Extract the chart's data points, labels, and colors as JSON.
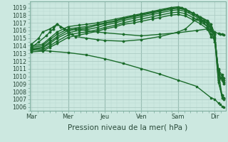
{
  "xlabel": "Pression niveau de la mer( hPa )",
  "background_color": "#cce8e0",
  "grid_color_major": "#a8c8c0",
  "grid_color_minor": "#b8d8d0",
  "line_color": "#1a6b2a",
  "yticks": [
    1006,
    1007,
    1008,
    1009,
    1010,
    1011,
    1012,
    1013,
    1014,
    1015,
    1016,
    1017,
    1018,
    1019
  ],
  "ylim": [
    1005.5,
    1019.8
  ],
  "xtick_labels": [
    "Mar",
    "Mer",
    "Jeu",
    "Ven",
    "Sam",
    "Dir"
  ],
  "xtick_positions": [
    0,
    1,
    2,
    3,
    4,
    5
  ],
  "xlim": [
    -0.05,
    5.3
  ],
  "lines": [
    {
      "x": [
        0.0,
        0.3,
        0.5,
        0.7,
        1.0,
        1.3,
        1.5,
        1.8,
        2.0,
        2.3,
        2.5,
        2.8,
        3.0,
        3.3,
        3.5,
        3.8,
        4.0,
        4.1,
        4.2,
        4.3,
        4.4,
        4.5,
        4.6,
        4.65,
        4.7,
        4.8,
        4.9,
        5.0,
        5.1,
        5.15,
        5.2,
        5.25
      ],
      "y": [
        1014.0,
        1014.2,
        1015.0,
        1015.8,
        1016.5,
        1016.7,
        1016.8,
        1017.0,
        1017.2,
        1017.5,
        1017.7,
        1018.0,
        1018.2,
        1018.5,
        1018.7,
        1019.0,
        1019.1,
        1019.0,
        1018.8,
        1018.5,
        1018.2,
        1018.0,
        1017.5,
        1017.3,
        1017.0,
        1016.5,
        1016.0,
        1015.8,
        1015.6,
        1015.5,
        1015.5,
        1015.4
      ],
      "marker": "D",
      "ms": 1.5,
      "lw": 1.0
    },
    {
      "x": [
        0.0,
        0.3,
        0.5,
        0.7,
        1.0,
        1.3,
        1.5,
        1.8,
        2.0,
        2.3,
        2.5,
        2.8,
        3.0,
        3.3,
        3.5,
        3.8,
        4.0,
        4.2,
        4.4,
        4.6,
        4.8,
        4.9,
        5.0,
        5.1,
        5.2,
        5.25
      ],
      "y": [
        1013.8,
        1014.0,
        1014.8,
        1015.5,
        1016.2,
        1016.4,
        1016.5,
        1016.8,
        1017.0,
        1017.3,
        1017.6,
        1017.9,
        1018.1,
        1018.4,
        1018.6,
        1018.9,
        1019.0,
        1018.8,
        1018.3,
        1017.8,
        1017.3,
        1016.8,
        1015.6,
        1010.2,
        1009.8,
        1009.5
      ],
      "marker": "D",
      "ms": 1.5,
      "lw": 1.0
    },
    {
      "x": [
        0.0,
        0.3,
        0.5,
        0.7,
        1.0,
        1.3,
        1.5,
        1.8,
        2.0,
        2.3,
        2.5,
        2.8,
        3.0,
        3.3,
        3.5,
        3.8,
        4.0,
        4.2,
        4.4,
        4.6,
        4.8,
        4.9,
        5.0,
        5.1,
        5.2,
        5.25
      ],
      "y": [
        1013.6,
        1013.8,
        1014.5,
        1015.2,
        1016.0,
        1016.2,
        1016.3,
        1016.7,
        1016.9,
        1017.2,
        1017.5,
        1017.8,
        1018.0,
        1018.3,
        1018.5,
        1018.8,
        1018.9,
        1018.7,
        1018.2,
        1017.7,
        1017.2,
        1016.5,
        1015.4,
        1010.5,
        1010.0,
        1009.8
      ],
      "marker": "D",
      "ms": 1.5,
      "lw": 1.0
    },
    {
      "x": [
        0.0,
        0.3,
        0.5,
        0.7,
        1.0,
        1.3,
        1.5,
        1.8,
        2.0,
        2.3,
        2.5,
        2.8,
        3.0,
        3.3,
        3.5,
        3.8,
        4.0,
        4.2,
        4.4,
        4.6,
        4.8,
        4.9,
        5.0,
        5.1,
        5.2,
        5.25
      ],
      "y": [
        1013.5,
        1013.7,
        1014.3,
        1015.0,
        1015.7,
        1016.0,
        1016.1,
        1016.4,
        1016.7,
        1017.0,
        1017.3,
        1017.6,
        1017.8,
        1018.1,
        1018.3,
        1018.6,
        1018.7,
        1018.5,
        1018.0,
        1017.5,
        1017.0,
        1016.3,
        1015.2,
        1010.8,
        1010.2,
        1009.2
      ],
      "marker": "D",
      "ms": 1.5,
      "lw": 1.0
    },
    {
      "x": [
        0.0,
        0.3,
        0.5,
        0.7,
        1.0,
        1.3,
        1.5,
        1.8,
        2.0,
        2.3,
        2.5,
        2.8,
        3.0,
        3.3,
        3.5,
        3.8,
        4.0,
        4.2,
        4.4,
        4.6,
        4.8,
        4.9,
        5.0,
        5.1,
        5.2,
        5.25
      ],
      "y": [
        1013.4,
        1013.5,
        1014.0,
        1014.6,
        1015.4,
        1015.7,
        1015.8,
        1016.1,
        1016.4,
        1016.7,
        1017.0,
        1017.3,
        1017.5,
        1017.8,
        1018.0,
        1018.3,
        1018.4,
        1018.2,
        1017.7,
        1017.2,
        1016.5,
        1015.5,
        1015.0,
        1009.5,
        1007.2,
        1007.0
      ],
      "marker": "D",
      "ms": 1.5,
      "lw": 1.0
    },
    {
      "x": [
        0.0,
        0.3,
        0.5,
        0.7,
        1.0,
        1.3,
        1.5,
        1.8,
        2.0,
        2.3,
        2.5,
        2.8,
        3.0,
        3.3,
        3.5,
        3.8,
        4.0,
        4.2,
        4.4,
        4.6,
        4.8,
        4.9,
        5.0,
        5.1,
        5.2,
        5.25
      ],
      "y": [
        1013.2,
        1013.3,
        1013.8,
        1014.3,
        1015.1,
        1015.4,
        1015.6,
        1015.9,
        1016.2,
        1016.5,
        1016.8,
        1017.0,
        1017.2,
        1017.5,
        1017.7,
        1018.0,
        1018.1,
        1017.9,
        1017.4,
        1016.9,
        1016.2,
        1015.2,
        1014.8,
        1009.2,
        1007.5,
        1007.2
      ],
      "marker": "D",
      "ms": 1.5,
      "lw": 1.0
    },
    {
      "x": [
        0.0,
        0.2,
        0.3,
        0.5,
        0.6,
        0.7,
        0.8,
        1.0,
        1.2,
        1.5,
        1.8,
        2.0,
        2.5,
        3.0,
        3.5,
        4.0,
        4.5,
        4.8,
        4.9,
        5.0,
        5.1,
        5.2,
        5.25
      ],
      "y": [
        1014.2,
        1015.0,
        1015.8,
        1016.2,
        1016.5,
        1016.8,
        1016.5,
        1016.0,
        1016.2,
        1016.0,
        1015.8,
        1015.7,
        1015.5,
        1015.3,
        1015.5,
        1015.7,
        1016.0,
        1016.2,
        1016.0,
        1015.5,
        1010.5,
        1007.5,
        1007.2
      ],
      "marker": "D",
      "ms": 1.5,
      "lw": 1.0
    },
    {
      "x": [
        0.0,
        0.5,
        1.0,
        1.5,
        2.0,
        2.5,
        3.0,
        3.5,
        4.0,
        4.5,
        4.9,
        5.0,
        5.1,
        5.15,
        5.2,
        5.25
      ],
      "y": [
        1013.5,
        1013.3,
        1013.1,
        1012.8,
        1012.3,
        1011.7,
        1011.0,
        1010.3,
        1009.5,
        1008.7,
        1007.2,
        1007.0,
        1006.5,
        1006.3,
        1006.1,
        1006.0
      ],
      "marker": "s",
      "ms": 1.5,
      "lw": 1.0
    },
    {
      "x": [
        0.0,
        0.2,
        0.4,
        0.5,
        0.6,
        0.7,
        0.8,
        0.9,
        1.0,
        1.1,
        1.2,
        1.5,
        1.8,
        2.0,
        2.5,
        3.0,
        3.5,
        4.0,
        4.2,
        4.5,
        4.7,
        4.8,
        4.9,
        5.0,
        5.1,
        5.15,
        5.2,
        5.25
      ],
      "y": [
        1013.8,
        1014.5,
        1015.3,
        1015.8,
        1016.2,
        1016.8,
        1016.5,
        1016.2,
        1015.8,
        1015.5,
        1015.2,
        1015.0,
        1014.8,
        1014.7,
        1014.6,
        1014.8,
        1015.2,
        1015.8,
        1016.2,
        1017.5,
        1017.3,
        1016.8,
        1016.2,
        1014.5,
        1011.0,
        1009.8,
        1009.5,
        1009.0
      ],
      "marker": "D",
      "ms": 1.5,
      "lw": 1.0
    }
  ],
  "vline_positions": [
    1,
    2,
    3,
    4
  ],
  "xlabel_fontsize": 7.5,
  "tick_fontsize": 6.0,
  "ytick_fontsize": 5.8
}
